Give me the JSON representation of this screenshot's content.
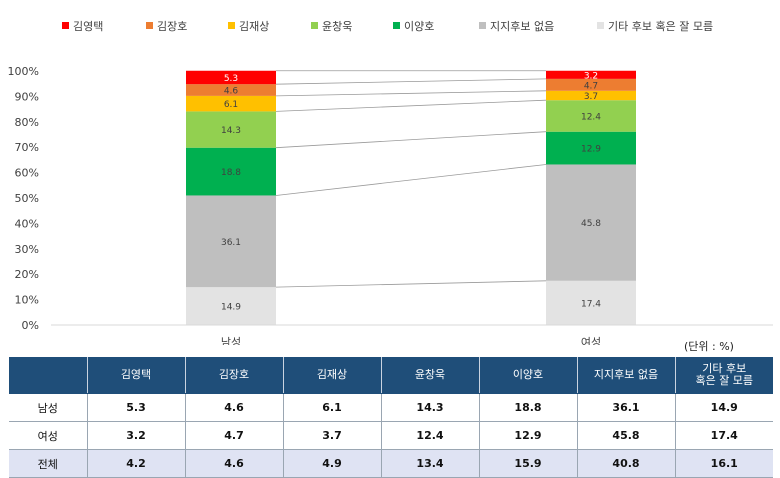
{
  "chart_data": {
    "type": "bar",
    "stacked": true,
    "categories": [
      "남성",
      "여성"
    ],
    "series": [
      {
        "name": "기타 후보 혹은 잘 모름",
        "color": "#e3e3e3",
        "values": [
          14.9,
          17.4
        ]
      },
      {
        "name": "지지후보 없음",
        "color": "#bfbfbf",
        "values": [
          36.1,
          45.8
        ]
      },
      {
        "name": "이양호",
        "color": "#00b050",
        "values": [
          18.8,
          12.9
        ]
      },
      {
        "name": "윤창욱",
        "color": "#92d050",
        "values": [
          14.3,
          12.4
        ]
      },
      {
        "name": "김재상",
        "color": "#ffc000",
        "values": [
          6.1,
          3.7
        ]
      },
      {
        "name": "김장호",
        "color": "#ed7d31",
        "values": [
          4.6,
          4.7
        ]
      },
      {
        "name": "김영택",
        "color": "#ff0000",
        "values": [
          5.3,
          3.2
        ]
      }
    ],
    "legend_order": [
      "김영택",
      "김장호",
      "김재상",
      "윤창욱",
      "이양호",
      "지지후보 없음",
      "기타 후보 혹은 잘 모름"
    ],
    "yticks": [
      "0%",
      "10%",
      "20%",
      "30%",
      "40%",
      "50%",
      "60%",
      "70%",
      "80%",
      "90%",
      "100%"
    ],
    "ylim": [
      0,
      100
    ],
    "grid": false,
    "legend_position": "top"
  },
  "unit_label": "(단위 : %)",
  "table": {
    "headers": [
      "",
      "김영택",
      "김장호",
      "김재상",
      "윤창욱",
      "이양호",
      "지지후보 없음",
      "기타 후보\n혹은 잘 모름"
    ],
    "rows": [
      {
        "label": "남성",
        "values": [
          "5.3",
          "4.6",
          "6.1",
          "14.3",
          "18.8",
          "36.1",
          "14.9"
        ]
      },
      {
        "label": "여성",
        "values": [
          "3.2",
          "4.7",
          "3.7",
          "12.4",
          "12.9",
          "45.8",
          "17.4"
        ]
      },
      {
        "label": "전체",
        "values": [
          "4.2",
          "4.6",
          "4.9",
          "13.4",
          "15.9",
          "40.8",
          "16.1"
        ]
      }
    ]
  }
}
